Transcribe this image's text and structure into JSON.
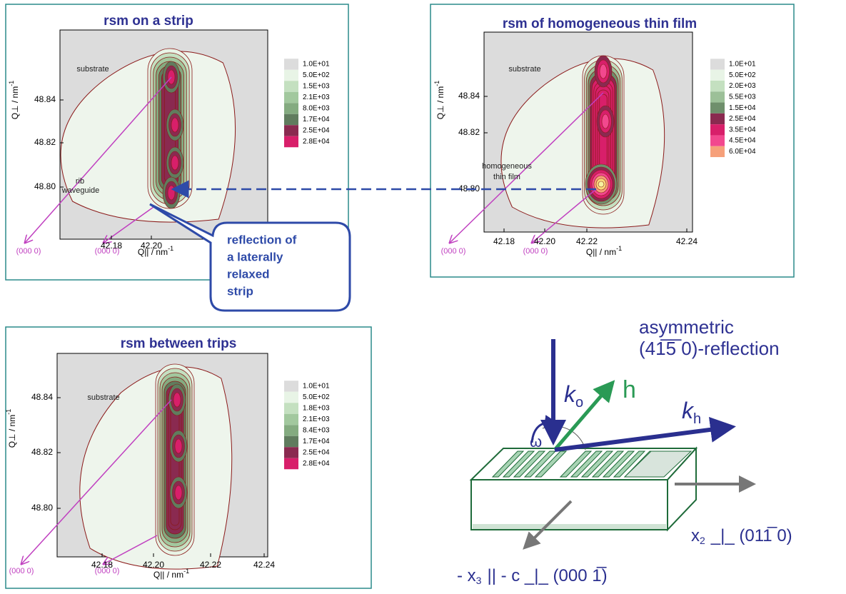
{
  "panels": [
    {
      "title": "rsm on a strip",
      "y_axis_label": "Q⊥ / nm",
      "y_axis_label_sup": "-1",
      "x_axis_label": "Q|| / nm",
      "x_axis_label_sup": "-1",
      "yticks": [
        "48.84",
        "48.82",
        "48.80"
      ],
      "xticks": [
        "42.18",
        "42.20"
      ],
      "legend": [
        "1.0E+01",
        "5.0E+02",
        "1.5E+03",
        "2.1E+03",
        "8.0E+03",
        "1.7E+04",
        "2.5E+04",
        "2.8E+04"
      ],
      "annotations": [
        "substrate",
        "rib",
        "waveguide"
      ],
      "origin_labels": [
        "(000 0)",
        "(000 0)"
      ]
    },
    {
      "title": "rsm of homogeneous thin film",
      "y_axis_label": "Q⊥ / nm",
      "y_axis_label_sup": "-1",
      "x_axis_label": "Q|| / nm",
      "x_axis_label_sup": "-1",
      "yticks": [
        "48.84",
        "48.82",
        "48.80"
      ],
      "xticks": [
        "42.18",
        "42.20",
        "42.22",
        "42.24"
      ],
      "legend": [
        "1.0E+01",
        "5.0E+02",
        "2.0E+03",
        "5.5E+03",
        "1.5E+04",
        "2.5E+04",
        "3.5E+04",
        "4.5E+04",
        "6.0E+04"
      ],
      "annotations": [
        "substrate",
        "homogeneous",
        "thin film"
      ],
      "origin_labels": [
        "(000 0)",
        "(000 0)"
      ]
    },
    {
      "title": "rsm between trips",
      "y_axis_label": "Q⊥ / nm",
      "y_axis_label_sup": "-1",
      "x_axis_label": "Q|| / nm",
      "x_axis_label_sup": "-1",
      "yticks": [
        "48.84",
        "48.82",
        "48.80"
      ],
      "xticks": [
        "42.18",
        "42.20",
        "42.22",
        "42.24"
      ],
      "legend": [
        "1.0E+01",
        "5.0E+02",
        "1.8E+03",
        "2.1E+03",
        "8.4E+03",
        "1.7E+04",
        "2.5E+04",
        "2.8E+04"
      ],
      "annotations": [
        "substrate"
      ],
      "origin_labels": [
        "(000 0)",
        "(000 0)"
      ]
    }
  ],
  "callout": {
    "lines": [
      "reflection of",
      "a laterally",
      "relaxed",
      "strip"
    ]
  },
  "diagram": {
    "title_lines": [
      "asymmetric",
      "(41̅5̅ 0)-reflection"
    ],
    "k_o": {
      "base": "k",
      "sub": "o"
    },
    "h": "h",
    "k_h": {
      "base": "k",
      "sub": "h"
    },
    "omega": "ω",
    "x2_label": {
      "pre": "x",
      "sub": "2",
      "rest": "_|_ (011̅ 0)"
    },
    "x3_label": {
      "pre": "- x",
      "sub": "3",
      "rest": "|| - c _|_ (000 1̅)"
    }
  }
}
